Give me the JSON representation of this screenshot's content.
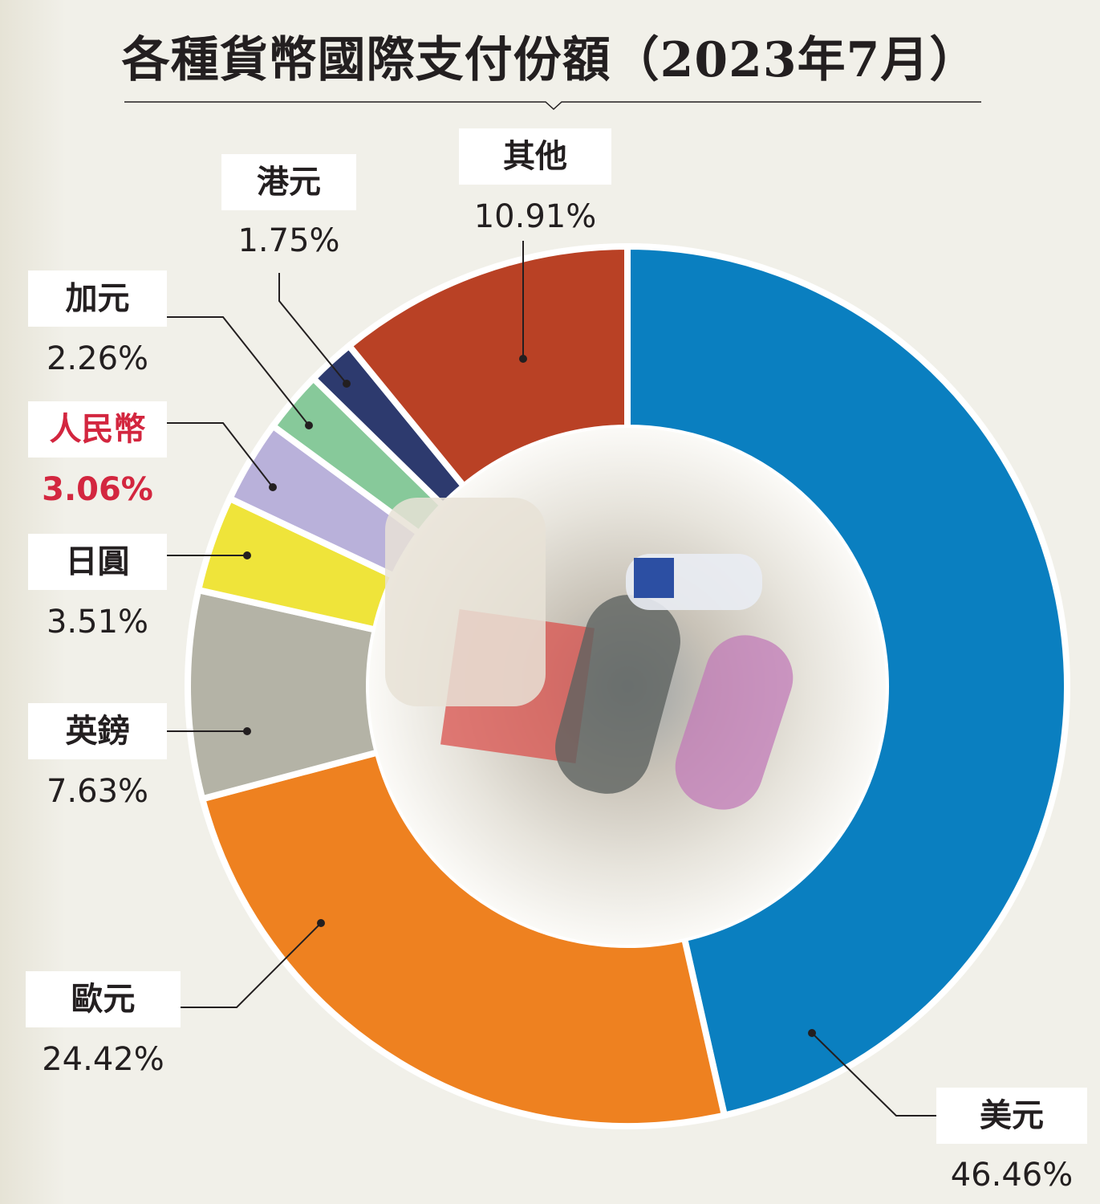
{
  "chart_data": {
    "type": "pie",
    "donut": true,
    "title": "各種貨幣國際支付份額（2023年7月）",
    "unit": "%",
    "slices": [
      {
        "label": "美元",
        "value": 46.46,
        "display": "46.46%",
        "color": "#0a7fc0"
      },
      {
        "label": "歐元",
        "value": 24.42,
        "display": "24.42%",
        "color": "#ee8120"
      },
      {
        "label": "英鎊",
        "value": 7.63,
        "display": "7.63%",
        "color": "#b4b3a6"
      },
      {
        "label": "日圓",
        "value": 3.51,
        "display": "3.51%",
        "color": "#efe43a"
      },
      {
        "label": "人民幣",
        "value": 3.06,
        "display": "3.06%",
        "color": "#b9b1da",
        "highlight": "#d3263f"
      },
      {
        "label": "加元",
        "value": 2.26,
        "display": "2.26%",
        "color": "#87c99a"
      },
      {
        "label": "港元",
        "value": 1.75,
        "display": "1.75%",
        "color": "#2d3a6e"
      },
      {
        "label": "其他",
        "value": 10.91,
        "display": "10.91%",
        "color": "#b94125"
      }
    ],
    "start": "top",
    "direction": "clockwise"
  }
}
